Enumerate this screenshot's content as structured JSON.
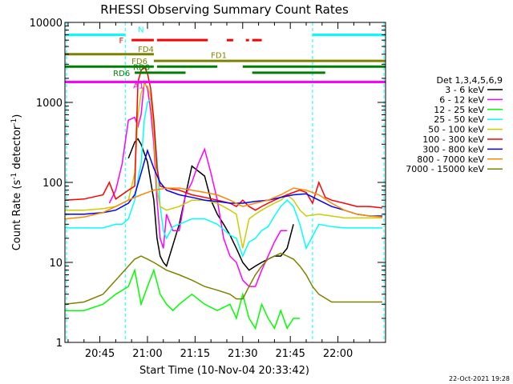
{
  "chart_data": {
    "type": "line",
    "title": "RHESSI Observing Summary Count Rates",
    "xlabel": "Start Time (10-Nov-04 20:33:42)",
    "ylabel": "Count Rate (s",
    "ylabel_sup": "-1",
    "ylabel_mid": " detector",
    "ylabel_end": ")",
    "footer": "22-Oct-2021 19:28",
    "y_scale": "log",
    "ylim": [
      1,
      10000
    ],
    "xlim_minutes": [
      34,
      135
    ],
    "grid": false,
    "legend_placement": "right",
    "legend_title": "Det 1,3,4,5,6,9",
    "x_ticks": [
      {
        "minute": 45,
        "label": "20:45"
      },
      {
        "minute": 60,
        "label": "21:00"
      },
      {
        "minute": 75,
        "label": "21:15"
      },
      {
        "minute": 90,
        "label": "21:30"
      },
      {
        "minute": 105,
        "label": "21:45"
      },
      {
        "minute": 120,
        "label": "22:00"
      }
    ],
    "y_ticks": [
      {
        "value": 1,
        "label": "1"
      },
      {
        "value": 10,
        "label": "10"
      },
      {
        "value": 100,
        "label": "100"
      },
      {
        "value": 1000,
        "label": "1000"
      },
      {
        "value": 10000,
        "label": "10000"
      }
    ],
    "series": [
      {
        "name": "3 - 6 keV",
        "color": "#000000",
        "x": [
          34,
          48,
          52,
          54,
          56,
          57,
          58,
          60,
          62,
          63,
          64,
          65,
          66,
          70,
          74,
          78,
          80,
          82,
          84,
          86,
          88,
          90,
          92,
          94,
          96,
          98,
          100,
          102,
          104,
          106,
          108
        ],
        "y": [
          null,
          null,
          null,
          200,
          320,
          350,
          300,
          180,
          60,
          20,
          12,
          10,
          9,
          30,
          160,
          120,
          60,
          40,
          30,
          22,
          15,
          10,
          8,
          9,
          10,
          11,
          12,
          12,
          15,
          30,
          null
        ]
      },
      {
        "name": "6 - 12 keV",
        "color": "#ff00ff",
        "x": [
          48,
          50,
          52,
          54,
          56,
          57,
          58,
          59,
          60,
          61,
          62,
          63,
          64,
          65,
          66,
          68,
          70,
          72,
          74,
          76,
          78,
          80,
          82,
          84,
          86,
          88,
          90,
          92,
          94,
          96,
          98,
          100,
          102,
          104
        ],
        "y": [
          55,
          80,
          170,
          600,
          650,
          500,
          700,
          1800,
          1500,
          800,
          300,
          60,
          20,
          15,
          40,
          25,
          25,
          70,
          100,
          170,
          260,
          130,
          60,
          20,
          12,
          10,
          6,
          5,
          5,
          8,
          12,
          18,
          25,
          25
        ]
      },
      {
        "name": "12 - 25 keV",
        "color": "#00ff00",
        "x": [
          34,
          40,
          46,
          50,
          54,
          56,
          58,
          60,
          62,
          64,
          66,
          68,
          70,
          74,
          78,
          82,
          86,
          88,
          90,
          92,
          94,
          96,
          98,
          100,
          102,
          104,
          106,
          108,
          110
        ],
        "y": [
          2.5,
          2.5,
          3,
          4,
          5,
          8,
          3,
          5,
          8,
          4,
          3,
          2.5,
          3,
          4,
          3,
          2.5,
          3,
          2,
          4,
          2,
          1.5,
          3,
          2,
          1.5,
          2.5,
          1.5,
          2,
          2,
          null
        ]
      },
      {
        "name": "25 - 50 keV",
        "color": "#00ffff",
        "x": [
          34,
          40,
          46,
          50,
          52,
          54,
          56,
          57,
          58,
          59,
          60,
          61,
          62,
          63,
          64,
          65,
          66,
          68,
          70,
          74,
          78,
          82,
          86,
          88,
          90,
          92,
          94,
          96,
          98,
          100,
          102,
          104,
          106,
          108,
          110,
          114,
          118,
          122,
          126,
          130,
          134
        ],
        "y": [
          27,
          27,
          27,
          30,
          30,
          35,
          60,
          110,
          170,
          600,
          1000,
          1100,
          600,
          200,
          50,
          25,
          20,
          28,
          30,
          35,
          35,
          30,
          22,
          20,
          12,
          18,
          20,
          25,
          28,
          38,
          50,
          60,
          50,
          30,
          15,
          30,
          28,
          27,
          27,
          27,
          27
        ]
      },
      {
        "name": "50 - 100 keV",
        "color": "#cccc00",
        "x": [
          34,
          40,
          46,
          50,
          54,
          56,
          57,
          58,
          59,
          60,
          61,
          62,
          63,
          64,
          66,
          70,
          74,
          78,
          82,
          86,
          88,
          90,
          92,
          94,
          96,
          98,
          100,
          102,
          104,
          106,
          108,
          110,
          114,
          118,
          122,
          126,
          130,
          134
        ],
        "y": [
          45,
          45,
          47,
          50,
          60,
          130,
          700,
          1300,
          1700,
          1600,
          1200,
          400,
          80,
          50,
          45,
          50,
          60,
          60,
          55,
          45,
          40,
          15,
          35,
          40,
          45,
          50,
          55,
          60,
          70,
          60,
          45,
          38,
          40,
          38,
          36,
          36,
          36,
          36
        ]
      },
      {
        "name": "100 - 300 keV",
        "color": "#ff0000",
        "x": [
          34,
          40,
          46,
          48,
          50,
          54,
          56,
          57,
          58,
          59,
          60,
          61,
          62,
          63,
          64,
          66,
          70,
          74,
          78,
          82,
          86,
          88,
          90,
          92,
          94,
          96,
          98,
          100,
          102,
          104,
          106,
          108,
          110,
          112,
          114,
          116,
          118,
          122,
          126,
          130,
          134
        ],
        "y": [
          60,
          62,
          70,
          100,
          62,
          80,
          90,
          1800,
          2500,
          2800,
          2300,
          1500,
          600,
          150,
          90,
          85,
          80,
          70,
          65,
          60,
          55,
          50,
          60,
          50,
          45,
          50,
          55,
          60,
          65,
          70,
          75,
          80,
          75,
          55,
          100,
          65,
          60,
          55,
          50,
          50,
          48
        ]
      },
      {
        "name": "300 - 800 keV",
        "color": "#0000ff",
        "x": [
          34,
          40,
          46,
          50,
          54,
          56,
          58,
          60,
          62,
          64,
          66,
          70,
          74,
          78,
          82,
          86,
          90,
          94,
          98,
          102,
          106,
          110,
          114,
          118,
          122,
          126,
          130,
          134
        ],
        "y": [
          40,
          40,
          42,
          45,
          55,
          70,
          130,
          250,
          150,
          100,
          80,
          70,
          65,
          60,
          58,
          55,
          55,
          58,
          60,
          65,
          70,
          72,
          60,
          50,
          45,
          40,
          38,
          38
        ]
      },
      {
        "name": "800 - 7000 keV",
        "color": "#ff8800",
        "x": [
          34,
          40,
          46,
          50,
          54,
          58,
          62,
          66,
          70,
          74,
          78,
          82,
          86,
          90,
          94,
          98,
          102,
          106,
          110,
          114,
          118,
          122,
          126,
          130,
          134
        ],
        "y": [
          35,
          37,
          42,
          50,
          60,
          70,
          80,
          85,
          85,
          80,
          75,
          70,
          60,
          50,
          55,
          60,
          70,
          85,
          80,
          70,
          55,
          45,
          40,
          38,
          37
        ]
      },
      {
        "name": "7000 - 15000 keV",
        "color": "#808000",
        "x": [
          34,
          40,
          46,
          50,
          54,
          56,
          58,
          60,
          62,
          66,
          70,
          74,
          78,
          82,
          86,
          88,
          90,
          92,
          94,
          96,
          98,
          100,
          102,
          104,
          106,
          108,
          110,
          112,
          114,
          118,
          122,
          126,
          130,
          134
        ],
        "y": [
          3,
          3.2,
          4,
          6,
          9,
          11,
          12,
          11,
          10,
          8,
          7,
          6,
          5,
          4.5,
          4,
          3.5,
          3.5,
          5,
          7,
          9,
          11,
          12,
          13,
          12,
          11,
          9,
          7,
          5,
          4,
          3.2,
          3.2,
          3.2,
          3.2,
          3.2
        ]
      }
    ],
    "flag_bars": [
      {
        "label": "N",
        "color": "#00ffff",
        "segments": [
          [
            34,
            53
          ],
          [
            112,
            135
          ]
        ],
        "y": 7000
      },
      {
        "label": "F",
        "color": "#ff0000",
        "segments": [
          [
            55,
            62
          ],
          [
            63,
            79
          ],
          [
            85,
            87
          ],
          [
            91,
            92
          ],
          [
            93,
            96
          ]
        ],
        "y": 6000
      },
      {
        "label": "FD1",
        "color": "#808000",
        "segments": [],
        "y": 4500
      },
      {
        "label": "FD4",
        "color": "#808000",
        "segments": [
          [
            34,
            62
          ]
        ],
        "y": 4000
      },
      {
        "label": "FD6",
        "color": "#808000",
        "segments": [
          [
            62,
            135
          ]
        ],
        "y": 3300
      },
      {
        "label": "RD0",
        "color": "#008000",
        "segments": [
          [
            34,
            62
          ],
          [
            63,
            82
          ],
          [
            90,
            135
          ]
        ],
        "y": 2800
      },
      {
        "label": "RD6",
        "color": "#008000",
        "segments": [
          [
            56,
            72
          ],
          [
            93,
            116
          ]
        ],
        "y": 2350
      },
      {
        "label": "A1",
        "color": "#ff00ff",
        "segments": [
          [
            34,
            135
          ]
        ],
        "y": 1800
      }
    ]
  }
}
